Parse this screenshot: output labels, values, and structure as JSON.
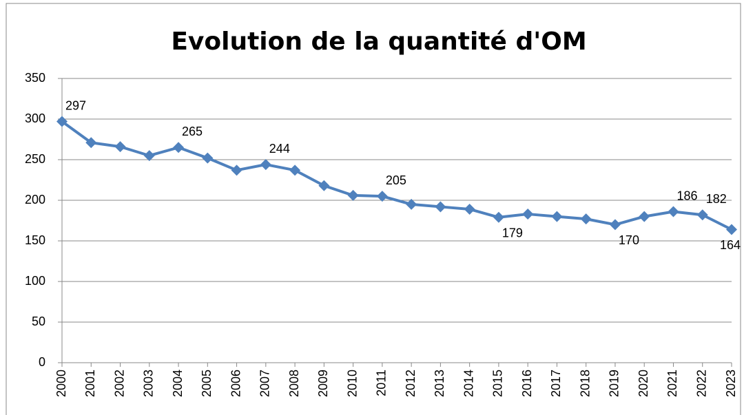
{
  "chart_data": {
    "type": "line",
    "title": "Evolution de la quantité d'OM",
    "categories": [
      "2000",
      "2001",
      "2002",
      "2003",
      "2004",
      "2005",
      "2006",
      "2007",
      "2008",
      "2009",
      "2010",
      "2011",
      "2012",
      "2013",
      "2014",
      "2015",
      "2016",
      "2017",
      "2018",
      "2019",
      "2020",
      "2021",
      "2022",
      "2023"
    ],
    "series": [
      {
        "color": "#4f81bd",
        "values": [
          297,
          271,
          266,
          255,
          265,
          252,
          237,
          244,
          237,
          218,
          206,
          205,
          195,
          192,
          189,
          179,
          183,
          180,
          177,
          170,
          180,
          186,
          182,
          164
        ],
        "value_labels": [
          "297",
          null,
          null,
          null,
          "265",
          null,
          null,
          "244",
          null,
          null,
          null,
          "205",
          null,
          null,
          null,
          "179",
          null,
          null,
          null,
          "170",
          null,
          "186",
          "182",
          "164"
        ]
      }
    ],
    "ylim": [
      0,
      350
    ],
    "yticks": [
      0,
      50,
      100,
      150,
      200,
      250,
      300,
      350
    ],
    "grid": true
  }
}
